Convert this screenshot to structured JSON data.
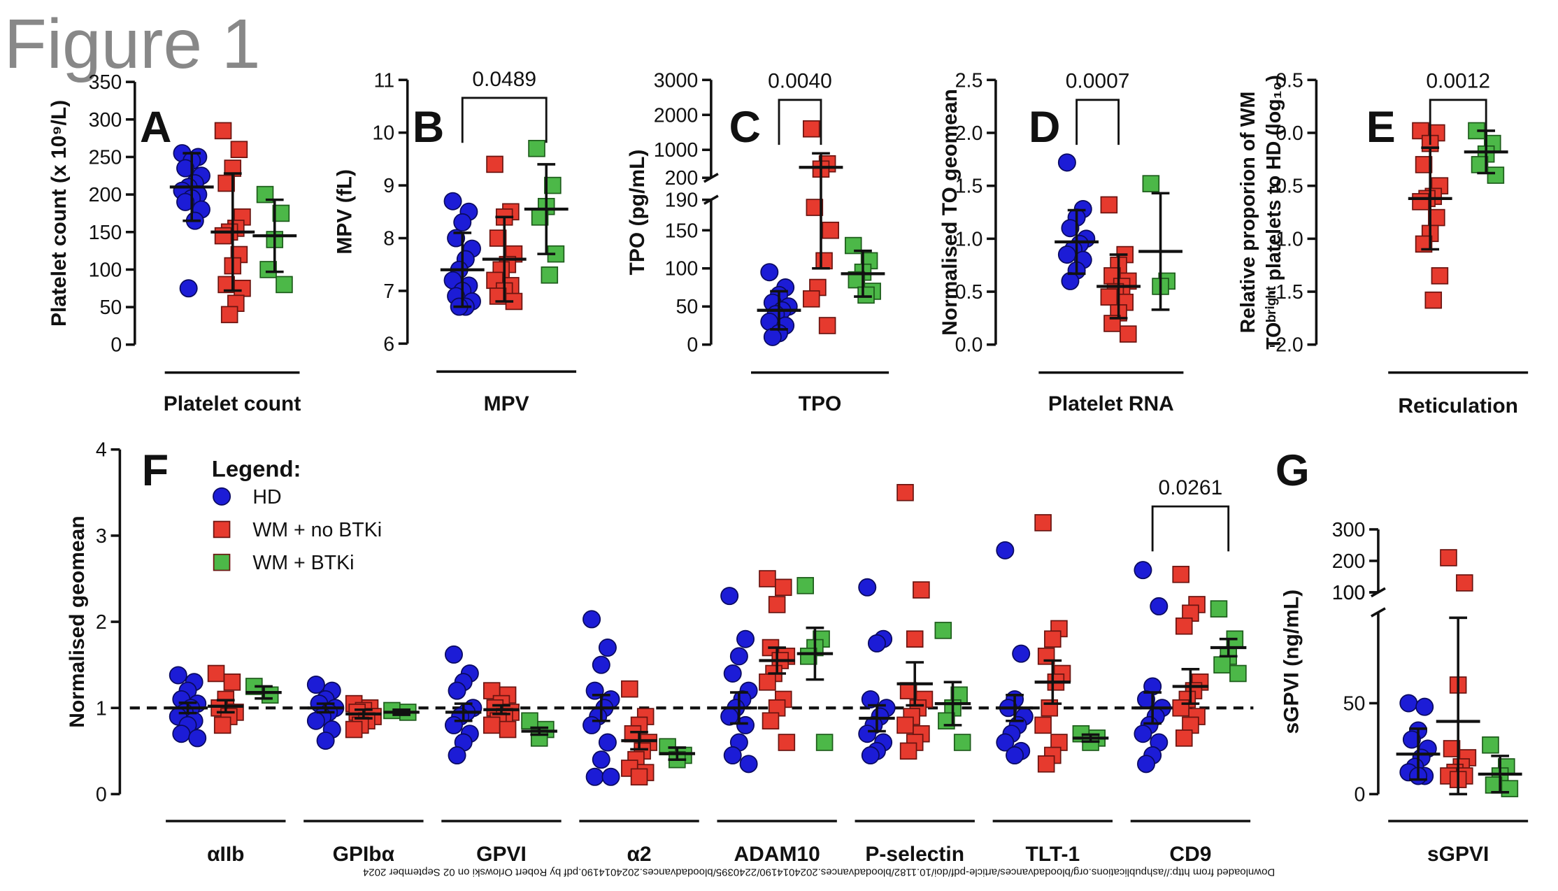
{
  "figure_title": "Figure 1",
  "footer": "Downloaded from http://ashpublications.org/bloodadvances/article-pdf/doi/10.1182/bloodadvances.2024014190/2240395/bloodadvances.2024014190.pdf by Robert Orlowski on 02 September 2024",
  "chart_data": [
    {
      "type": "dotplot",
      "panel_label": "A",
      "ylabel": "Platelet count (x 10⁹/L)",
      "categories": [
        "Platelet count"
      ],
      "ylim": [
        0,
        350
      ],
      "yticks": [
        0,
        50,
        100,
        150,
        200,
        250,
        300,
        350
      ],
      "series": [
        {
          "color": "#1c1cd6",
          "marker": "circle",
          "values": [
            [
              255,
              250,
              245,
              235,
              225,
              215,
              210,
              205,
              200,
              195,
              190,
              180,
              165,
              75
            ]
          ],
          "means": [
            210
          ],
          "errs": [
            45
          ]
        },
        {
          "color": "#e63a2e",
          "marker": "square",
          "values": [
            [
              285,
              260,
              235,
              215,
              170,
              155,
              150,
              145,
              120,
              105,
              80,
              75,
              55,
              40
            ]
          ],
          "means": [
            150
          ],
          "errs": [
            78
          ]
        },
        {
          "color": "#4cb848",
          "marker": "square",
          "values": [
            [
              200,
              175,
              140,
              100,
              80
            ]
          ],
          "means": [
            145
          ],
          "errs": [
            48
          ]
        }
      ]
    },
    {
      "type": "dotplot",
      "panel_label": "B",
      "ylabel": "MPV (fL)",
      "categories": [
        "MPV"
      ],
      "ylim": [
        6,
        11
      ],
      "yticks": [
        6,
        7,
        8,
        9,
        10,
        11
      ],
      "annotations": [
        {
          "text": "0.0489",
          "from": 0,
          "to": 2
        }
      ],
      "series": [
        {
          "color": "#1c1cd6",
          "marker": "circle",
          "values": [
            [
              8.7,
              8.5,
              8.3,
              8.0,
              7.8,
              7.6,
              7.4,
              7.2,
              7.1,
              7.0,
              6.9,
              6.8,
              6.7,
              6.7
            ]
          ],
          "means": [
            7.4
          ],
          "errs": [
            0.7
          ]
        },
        {
          "color": "#e63a2e",
          "marker": "square",
          "values": [
            [
              9.4,
              8.5,
              8.4,
              8.0,
              7.7,
              7.5,
              7.4,
              7.2,
              7.1,
              7.0,
              6.9,
              6.8
            ]
          ],
          "means": [
            7.6
          ],
          "errs": [
            0.8
          ]
        },
        {
          "color": "#4cb848",
          "marker": "square",
          "values": [
            [
              9.7,
              9.0,
              8.6,
              8.4,
              7.7,
              7.3
            ]
          ],
          "means": [
            8.55
          ],
          "errs": [
            0.85
          ]
        }
      ]
    },
    {
      "type": "dotplot",
      "panel_label": "C",
      "ylabel": "TPO (pg/mL)",
      "categories": [
        "TPO"
      ],
      "ylim": [
        0,
        190
      ],
      "yticks": [
        0,
        50,
        100,
        150,
        190
      ],
      "ylim_upper": [
        200,
        3000
      ],
      "yticks_upper": [
        200,
        1000,
        2000,
        3000
      ],
      "annotations": [
        {
          "text": "0.0040",
          "from": 0,
          "to": 1
        }
      ],
      "series": [
        {
          "color": "#1c1cd6",
          "marker": "circle",
          "values": [
            [
              95,
              75,
              65,
              55,
              50,
              45,
              40,
              30,
              25,
              15,
              10
            ]
          ],
          "means": [
            45
          ],
          "errs": [
            25
          ]
        },
        {
          "color": "#e63a2e",
          "marker": "square",
          "values": [
            [
              1600,
              600,
              450,
              180,
              150,
              110,
              75,
              60,
              25
            ]
          ],
          "means": [
            500
          ],
          "errs": [
            400
          ]
        },
        {
          "color": "#4cb848",
          "marker": "square",
          "values": [
            [
              130,
              110,
              95,
              85,
              70,
              65
            ]
          ],
          "means": [
            93
          ],
          "errs": [
            30
          ]
        }
      ]
    },
    {
      "type": "dotplot",
      "panel_label": "D",
      "ylabel": "Normalised TO geomean",
      "categories": [
        "Platelet RNA"
      ],
      "ylim": [
        0,
        2.5
      ],
      "yticks": [
        {
          "value": 0,
          "label": "0.0"
        },
        0.5,
        {
          "value": 1,
          "label": "1.0"
        },
        1.5,
        {
          "value": 2,
          "label": "2.0"
        },
        2.5
      ],
      "annotations": [
        {
          "text": "0.0007",
          "from": 0,
          "to": 1
        }
      ],
      "series": [
        {
          "color": "#1c1cd6",
          "marker": "circle",
          "values": [
            [
              1.72,
              1.28,
              1.2,
              1.1,
              1.0,
              0.95,
              0.9,
              0.85,
              0.8,
              0.7,
              0.6
            ]
          ],
          "means": [
            0.97
          ],
          "errs": [
            0.3
          ]
        },
        {
          "color": "#e63a2e",
          "marker": "square",
          "values": [
            [
              1.32,
              0.85,
              0.75,
              0.65,
              0.6,
              0.55,
              0.5,
              0.45,
              0.4,
              0.3,
              0.2,
              0.1
            ]
          ],
          "means": [
            0.55
          ],
          "errs": [
            0.3
          ]
        },
        {
          "color": "#4cb848",
          "marker": "square",
          "values": [
            [
              1.52,
              0.6,
              0.55
            ]
          ],
          "means": [
            0.88
          ],
          "errs": [
            0.55
          ]
        }
      ]
    },
    {
      "type": "dotplot",
      "panel_label": "E",
      "ylabel": [
        "Relative proporion of WM",
        "TOᵇʳⁱᵍʰᵗ platelets to HD (log₁₀)"
      ],
      "categories": [
        "Reticulation"
      ],
      "ylim": [
        -2,
        0.5
      ],
      "yticks": [
        {
          "value": -2,
          "label": "-2.0"
        },
        -1.5,
        {
          "value": -1,
          "label": "-1.0"
        },
        -0.5,
        {
          "value": 0,
          "label": "0.0"
        },
        0.5
      ],
      "annotations": [
        {
          "text": "0.0012",
          "from": 0,
          "to": 1
        }
      ],
      "series": [
        {
          "color": "#e63a2e",
          "marker": "square",
          "values": [
            [
              0.02,
              0.0,
              -0.1,
              -0.3,
              -0.5,
              -0.6,
              -0.62,
              -0.65,
              -0.8,
              -0.95,
              -1.05,
              -1.35,
              -1.58
            ]
          ],
          "means": [
            -0.62
          ],
          "errs": [
            0.48
          ]
        },
        {
          "color": "#4cb848",
          "marker": "square",
          "values": [
            [
              0.02,
              -0.1,
              -0.2,
              -0.3,
              -0.4
            ]
          ],
          "means": [
            -0.18
          ],
          "errs": [
            0.2
          ]
        }
      ]
    },
    {
      "type": "dotplot",
      "panel_label": "F",
      "ylabel": "Normalised geomean",
      "legend_title": "Legend:",
      "categories": [
        "αIIb",
        "GPIbα",
        "GPVI",
        "α2",
        "ADAM10",
        "P-selectin",
        "TLT-1",
        "CD9"
      ],
      "ylim": [
        0,
        4
      ],
      "yticks": [
        0,
        1,
        2,
        3,
        4
      ],
      "reference_line": 1,
      "annotations": [
        {
          "text": "0.0261",
          "from": 0,
          "to": 2,
          "category": 7
        }
      ],
      "series": [
        {
          "name": "HD",
          "color": "#1c1cd6",
          "marker": "circle",
          "values": [
            [
              1.38,
              1.3,
              1.2,
              1.1,
              1.05,
              1.0,
              0.95,
              0.9,
              0.85,
              0.8,
              0.7,
              0.65
            ],
            [
              1.27,
              1.2,
              1.1,
              1.05,
              1.0,
              0.95,
              0.9,
              0.85,
              0.75,
              0.62
            ],
            [
              1.62,
              1.4,
              1.3,
              1.2,
              1.0,
              0.95,
              0.9,
              0.8,
              0.7,
              0.6,
              0.45
            ],
            [
              2.03,
              1.7,
              1.5,
              1.2,
              1.1,
              1.0,
              0.9,
              0.8,
              0.6,
              0.4,
              0.2,
              0.2
            ],
            [
              2.3,
              1.8,
              1.6,
              1.4,
              1.2,
              1.1,
              1.0,
              0.9,
              0.8,
              0.6,
              0.45,
              0.35
            ],
            [
              2.4,
              1.8,
              1.75,
              1.1,
              1.0,
              0.9,
              0.8,
              0.7,
              0.6,
              0.5,
              0.45
            ],
            [
              2.83,
              1.63,
              1.1,
              1.0,
              0.9,
              0.8,
              0.7,
              0.6,
              0.5,
              0.45
            ],
            [
              2.6,
              2.18,
              1.25,
              1.1,
              1.0,
              0.9,
              0.8,
              0.7,
              0.6,
              0.45,
              0.35
            ]
          ],
          "means": [
            1.0,
            1.0,
            0.95,
            1.0,
            1.0,
            0.88,
            1.0,
            1.0
          ],
          "errs": [
            0.06,
            0.05,
            0.1,
            0.15,
            0.18,
            0.15,
            0.15,
            0.18
          ]
        },
        {
          "name": "WM + no BTKi",
          "color": "#e63a2e",
          "marker": "square",
          "values": [
            [
              1.4,
              1.3,
              1.1,
              1.0,
              0.95,
              0.9,
              0.8
            ],
            [
              1.05,
              1.0,
              0.97,
              0.95,
              0.9,
              0.85,
              0.8,
              0.75
            ],
            [
              1.2,
              1.15,
              1.05,
              1.0,
              0.95,
              0.9,
              0.85,
              0.8,
              0.75
            ],
            [
              1.22,
              0.9,
              0.8,
              0.7,
              0.6,
              0.5,
              0.4,
              0.3,
              0.25,
              0.2
            ],
            [
              2.5,
              2.4,
              2.2,
              1.7,
              1.6,
              1.55,
              1.4,
              1.3,
              1.1,
              1.0,
              0.85,
              0.6
            ],
            [
              3.5,
              2.37,
              1.8,
              1.2,
              1.1,
              1.0,
              0.9,
              0.8,
              0.7,
              0.6,
              0.5
            ],
            [
              3.15,
              1.92,
              1.8,
              1.6,
              1.4,
              1.3,
              1.0,
              0.8,
              0.6,
              0.45,
              0.35
            ],
            [
              2.55,
              2.2,
              2.1,
              1.95,
              1.3,
              1.2,
              1.1,
              1.0,
              0.9,
              0.8,
              0.65
            ]
          ],
          "means": [
            1.02,
            0.93,
            0.98,
            0.62,
            1.55,
            1.28,
            1.3,
            1.25
          ],
          "errs": [
            0.07,
            0.05,
            0.05,
            0.1,
            0.15,
            0.25,
            0.25,
            0.2
          ]
        },
        {
          "name": "WM + BTKi",
          "color": "#4cb848",
          "marker": "square",
          "values": [
            [
              1.25,
              1.15
            ],
            [
              0.97,
              0.95
            ],
            [
              0.85,
              0.75,
              0.65
            ],
            [
              0.55,
              0.45,
              0.4
            ],
            [
              2.42,
              1.8,
              1.7,
              1.6,
              0.6
            ],
            [
              1.9,
              1.15,
              1.0,
              0.85,
              0.6
            ],
            [
              0.7,
              0.65,
              0.6
            ],
            [
              2.15,
              1.8,
              1.6,
              1.5,
              1.4
            ]
          ],
          "means": [
            1.18,
            0.95,
            0.73,
            0.47,
            1.63,
            1.05,
            0.65,
            1.7
          ],
          "errs": [
            0.07,
            0.03,
            0.04,
            0.07,
            0.3,
            0.25,
            0.04,
            0.1
          ]
        }
      ]
    },
    {
      "type": "dotplot",
      "panel_label": "G",
      "ylabel": "sGPVI (ng/mL)",
      "categories": [
        "sGPVI"
      ],
      "ylim": [
        0,
        100
      ],
      "yticks": [
        0,
        50,
        100
      ],
      "ylim_upper": [
        100,
        300
      ],
      "yticks_upper": [
        100,
        200,
        300
      ],
      "series": [
        {
          "color": "#1c1cd6",
          "marker": "circle",
          "values": [
            [
              50,
              48,
              35,
              30,
              25,
              20,
              15,
              12,
              10,
              10
            ]
          ],
          "means": [
            22
          ],
          "errs": [
            14
          ]
        },
        {
          "color": "#e63a2e",
          "marker": "square",
          "values": [
            [
              210,
              130,
              60,
              25,
              20,
              15,
              12,
              10,
              10,
              8
            ]
          ],
          "means": [
            40
          ],
          "errs": [
            57
          ]
        },
        {
          "color": "#4cb848",
          "marker": "square",
          "values": [
            [
              27,
              15,
              10,
              5,
              3
            ]
          ],
          "means": [
            11
          ],
          "errs": [
            10
          ]
        }
      ]
    }
  ]
}
